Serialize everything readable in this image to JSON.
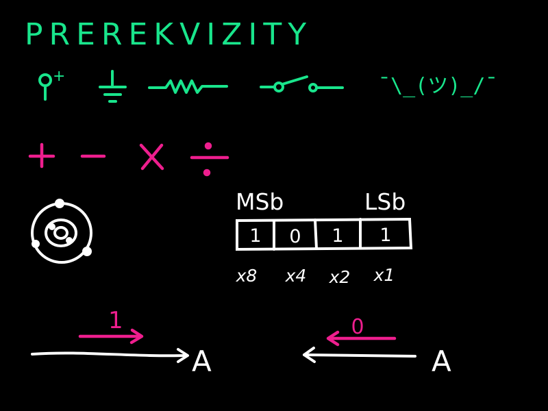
{
  "colors": {
    "background": "#000000",
    "green": "#19e58c",
    "magenta": "#ee1e8e",
    "white": "#ffffff"
  },
  "title": "PREREKVIZITY",
  "symbols": {
    "power_label": "+",
    "icons": [
      "power-supply-icon",
      "ground-icon",
      "resistor-icon",
      "switch-icon"
    ],
    "shrug": "¯\\_(ツ)_/¯"
  },
  "operators": [
    "+",
    "−",
    "×",
    "÷"
  ],
  "atom": {
    "icon": "atom-icon"
  },
  "binary": {
    "msb_label": "MSb",
    "lsb_label": "LSb",
    "bits": [
      "1",
      "0",
      "1",
      "1"
    ],
    "weights": [
      "x8",
      "x4",
      "x2",
      "x1"
    ]
  },
  "signals": {
    "left": {
      "value": "1",
      "target": "A"
    },
    "right": {
      "value": "0",
      "target": "A"
    }
  }
}
